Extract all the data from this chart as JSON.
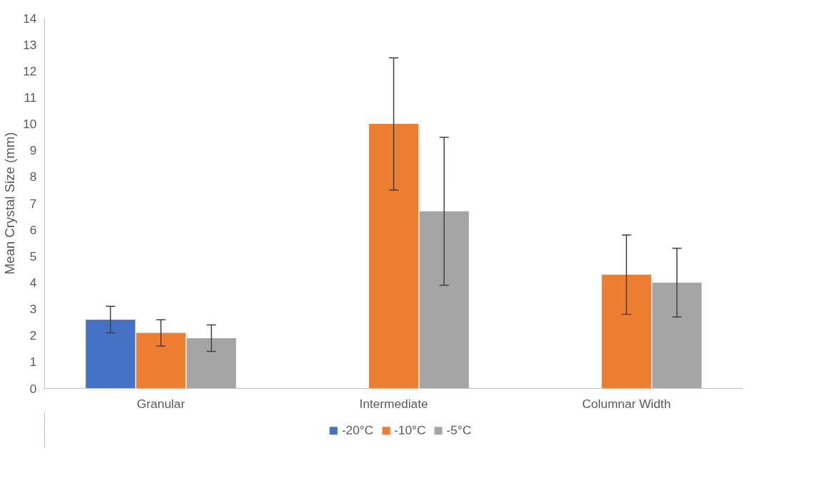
{
  "chart_data": {
    "type": "bar",
    "ylabel": "Mean Crystal Size (mm)",
    "categories": [
      "Granular",
      "Intermediate",
      "Columnar Width"
    ],
    "series": [
      {
        "name": "-20°C",
        "color": "#4472c4",
        "values": [
          2.6,
          null,
          null
        ],
        "errors": [
          0.5,
          null,
          null
        ]
      },
      {
        "name": "-10°C",
        "color": "#ed7d31",
        "values": [
          2.1,
          10.0,
          4.3
        ],
        "errors": [
          0.5,
          2.5,
          1.5
        ]
      },
      {
        "name": "-5°C",
        "color": "#a5a5a5",
        "values": [
          1.9,
          6.7,
          4.0
        ],
        "errors": [
          0.5,
          2.8,
          1.3
        ]
      }
    ],
    "ylim": [
      0,
      14
    ],
    "yticks": [
      0,
      1,
      2,
      3,
      4,
      5,
      6,
      7,
      8,
      9,
      10,
      11,
      12,
      13,
      14
    ],
    "grid": false,
    "legend": "bottom"
  }
}
